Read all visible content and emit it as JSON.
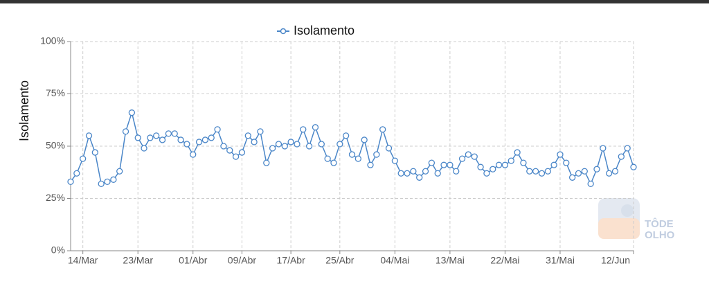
{
  "chart_data": {
    "type": "line",
    "y_label": "Isolamento",
    "categories": [
      null,
      null,
      "14/Mar",
      null,
      null,
      null,
      null,
      null,
      null,
      null,
      null,
      "23/Mar",
      null,
      null,
      null,
      null,
      null,
      null,
      null,
      null,
      "01/Abr",
      null,
      null,
      null,
      null,
      null,
      null,
      null,
      "09/Abr",
      null,
      null,
      null,
      null,
      null,
      null,
      null,
      "17/Abr",
      null,
      null,
      null,
      null,
      null,
      null,
      null,
      "25/Abr",
      null,
      null,
      null,
      null,
      null,
      null,
      null,
      null,
      "04/Mai",
      null,
      null,
      null,
      null,
      null,
      null,
      null,
      null,
      "13/Mai",
      null,
      null,
      null,
      null,
      null,
      null,
      null,
      null,
      "22/Mai",
      null,
      null,
      null,
      null,
      null,
      null,
      null,
      null,
      "31/Mai",
      null,
      null,
      null,
      null,
      null,
      null,
      null,
      null,
      null,
      null,
      null,
      "12/Jun"
    ],
    "series": [
      {
        "name": "Isolamento",
        "color": "#4a86c8",
        "values": [
          33,
          37,
          44,
          55,
          47,
          32,
          33,
          34,
          38,
          57,
          66,
          54,
          49,
          54,
          55,
          53,
          56,
          56,
          53,
          51,
          46,
          52,
          53,
          54,
          58,
          50,
          48,
          45,
          47,
          55,
          52,
          57,
          42,
          49,
          51,
          50,
          52,
          51,
          58,
          50,
          59,
          51,
          44,
          42,
          51,
          55,
          46,
          44,
          53,
          41,
          46,
          58,
          49,
          43,
          37,
          37,
          38,
          35,
          38,
          42,
          37,
          41,
          41,
          38,
          44,
          46,
          45,
          40,
          37,
          39,
          41,
          41,
          43,
          47,
          42,
          38,
          38,
          37,
          38,
          41,
          46,
          42,
          35,
          37,
          38,
          32,
          39,
          49,
          37,
          38,
          45,
          49,
          40
        ]
      }
    ],
    "ylim": [
      0,
      100
    ],
    "yticks": [
      {
        "value": 0,
        "label": "0%"
      },
      {
        "value": 25,
        "label": "25%"
      },
      {
        "value": 50,
        "label": "50%"
      },
      {
        "value": 75,
        "label": "75%"
      },
      {
        "value": 100,
        "label": "100%"
      }
    ],
    "grid": true,
    "legend": "top",
    "watermark": [
      "TÔDE",
      "OLHO"
    ]
  }
}
